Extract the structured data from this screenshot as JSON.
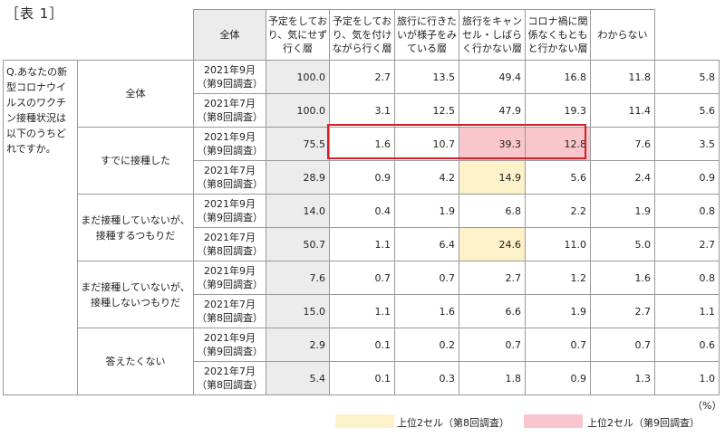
{
  "title": "［表 1］",
  "question": "Q.あなたの新型コロナウイルスのワクチン接種状況は以下のうちどれですか。",
  "headers": [
    "全体",
    "予定をしており、気にせず行く層",
    "予定をしており、気を付けながら行く層",
    "旅行に行きたいが様子をみている層",
    "旅行をキャンセル・しばらく行かない層",
    "コロナ禍に関係なくもともと行かない層",
    "わからない"
  ],
  "groups": [
    {
      "label": "全体",
      "rows": [
        {
          "period": "2021年9月",
          "survey": "（第9回調査）",
          "values": [
            "100.0",
            "2.7",
            "13.5",
            "49.4",
            "16.8",
            "11.8",
            "5.8"
          ]
        },
        {
          "period": "2021年7月",
          "survey": "（第8回調査）",
          "values": [
            "100.0",
            "3.1",
            "12.5",
            "47.9",
            "19.3",
            "11.4",
            "5.6"
          ]
        }
      ]
    },
    {
      "label": "すでに接種した",
      "rows": [
        {
          "period": "2021年9月",
          "survey": "（第9回調査）",
          "values": [
            "75.5",
            "1.6",
            "10.7",
            "39.3",
            "12.8",
            "7.6",
            "3.5"
          ]
        },
        {
          "period": "2021年7月",
          "survey": "（第8回調査）",
          "values": [
            "28.9",
            "0.9",
            "4.2",
            "14.9",
            "5.6",
            "2.4",
            "0.9"
          ]
        }
      ]
    },
    {
      "label": "まだ接種していないが、接種するつもりだ",
      "rows": [
        {
          "period": "2021年9月",
          "survey": "（第9回調査）",
          "values": [
            "14.0",
            "0.4",
            "1.9",
            "6.8",
            "2.2",
            "1.9",
            "0.8"
          ]
        },
        {
          "period": "2021年7月",
          "survey": "（第8回調査）",
          "values": [
            "50.7",
            "1.1",
            "6.4",
            "24.6",
            "11.0",
            "5.0",
            "2.7"
          ]
        }
      ]
    },
    {
      "label": "まだ接種していないが、接種しないつもりだ",
      "rows": [
        {
          "period": "2021年9月",
          "survey": "（第9回調査）",
          "values": [
            "7.6",
            "0.7",
            "0.7",
            "2.7",
            "1.2",
            "1.6",
            "0.8"
          ]
        },
        {
          "period": "2021年7月",
          "survey": "（第8回調査）",
          "values": [
            "15.0",
            "1.1",
            "1.6",
            "6.6",
            "1.9",
            "2.7",
            "1.1"
          ]
        }
      ]
    },
    {
      "label": "答えたくない",
      "rows": [
        {
          "period": "2021年9月",
          "survey": "（第9回調査）",
          "values": [
            "2.9",
            "0.1",
            "0.2",
            "0.7",
            "0.7",
            "0.7",
            "0.6"
          ]
        },
        {
          "period": "2021年7月",
          "survey": "（第8回調査）",
          "values": [
            "5.4",
            "0.1",
            "0.3",
            "1.8",
            "0.9",
            "1.3",
            "1.0"
          ]
        }
      ]
    }
  ],
  "highlights": {
    "yellow": [
      [
        1,
        1,
        3
      ],
      [
        2,
        1,
        3
      ]
    ],
    "pink": [
      [
        1,
        0,
        3
      ],
      [
        1,
        0,
        4
      ]
    ]
  },
  "unit": "（%）",
  "legend": {
    "yellow_label": "上位2セル（第8回調査）",
    "pink_label": "上位2セル（第9回調査）",
    "yellow_color": "#fdf1ca",
    "pink_color": "#f8c6cc"
  }
}
